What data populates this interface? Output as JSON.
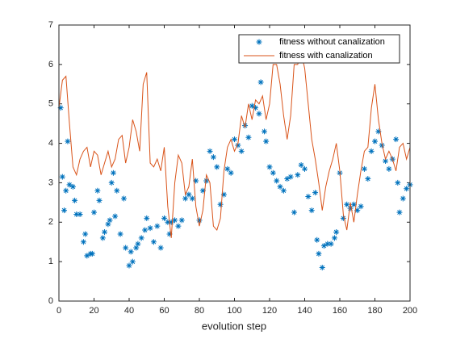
{
  "chart_data": {
    "type": "scatter",
    "xlabel": "evolution step",
    "xlim": [
      0,
      200
    ],
    "xticks": [
      0,
      20,
      40,
      60,
      80,
      100,
      120,
      140,
      160,
      180,
      200
    ],
    "ylim": [
      0,
      7
    ],
    "yticks": [
      0,
      1,
      2,
      3,
      4,
      5,
      6,
      7
    ],
    "legend": "northeast",
    "series": [
      {
        "name": "fitness without canalization",
        "type": "scatter",
        "color": "#0072bd",
        "x": [
          1,
          2,
          3,
          4,
          5,
          6,
          8,
          9,
          10,
          12,
          14,
          15,
          16,
          18,
          19,
          20,
          22,
          23,
          25,
          26,
          28,
          29,
          30,
          31,
          32,
          33,
          35,
          37,
          38,
          40,
          41,
          42,
          44,
          45,
          47,
          49,
          50,
          52,
          54,
          56,
          58,
          60,
          62,
          63,
          64,
          66,
          68,
          70,
          72,
          74,
          76,
          78,
          80,
          82,
          84,
          86,
          88,
          90,
          92,
          94,
          96,
          98,
          100,
          102,
          104,
          106,
          108,
          110,
          112,
          114,
          115,
          117,
          118,
          120,
          122,
          124,
          126,
          128,
          130,
          132,
          134,
          136,
          138,
          140,
          142,
          144,
          146,
          147,
          148,
          150,
          151,
          153,
          155,
          157,
          158,
          160,
          162,
          164,
          166,
          168,
          170,
          172,
          174,
          176,
          178,
          180,
          182,
          184,
          186,
          188,
          190,
          192,
          193,
          194,
          196,
          198,
          200
        ],
        "values": [
          4.9,
          3.15,
          2.3,
          2.8,
          4.05,
          2.95,
          2.9,
          2.55,
          2.2,
          2.2,
          1.5,
          1.7,
          1.15,
          1.2,
          1.2,
          2.25,
          2.8,
          2.55,
          1.6,
          1.75,
          1.95,
          2.05,
          3.0,
          3.25,
          2.15,
          2.8,
          1.7,
          2.6,
          1.35,
          0.9,
          1.25,
          1.0,
          1.35,
          1.45,
          1.6,
          1.8,
          2.1,
          1.85,
          1.5,
          1.9,
          1.35,
          2.1,
          2.0,
          1.7,
          2.0,
          2.05,
          1.9,
          2.05,
          2.6,
          2.7,
          2.6,
          3.05,
          2.05,
          2.8,
          3.05,
          3.8,
          3.65,
          3.4,
          2.45,
          2.7,
          3.35,
          3.25,
          4.1,
          3.95,
          3.8,
          4.45,
          4.15,
          4.95,
          4.9,
          4.75,
          5.55,
          4.3,
          4.05,
          3.4,
          3.25,
          3.05,
          2.9,
          2.8,
          3.1,
          3.15,
          2.25,
          3.2,
          3.45,
          3.35,
          2.65,
          2.3,
          2.75,
          1.55,
          1.2,
          0.85,
          1.4,
          1.45,
          1.45,
          1.6,
          1.75,
          3.25,
          2.1,
          2.45,
          2.35,
          2.45,
          2.3,
          2.4,
          3.35,
          3.1,
          3.8,
          4.05,
          4.3,
          3.95,
          3.55,
          3.35,
          3.6,
          4.1,
          3.0,
          2.25,
          2.6,
          2.85,
          2.95
        ]
      },
      {
        "name": "fitness with canalization",
        "type": "line",
        "color": "#d95319",
        "x": [
          0,
          2,
          4,
          6,
          8,
          10,
          12,
          14,
          16,
          18,
          20,
          22,
          24,
          26,
          28,
          30,
          32,
          34,
          36,
          38,
          40,
          42,
          44,
          46,
          48,
          50,
          52,
          54,
          56,
          58,
          60,
          62,
          64,
          66,
          68,
          70,
          72,
          74,
          76,
          78,
          80,
          82,
          84,
          86,
          88,
          90,
          92,
          94,
          96,
          98,
          100,
          102,
          104,
          106,
          108,
          110,
          112,
          114,
          116,
          118,
          120,
          122,
          124,
          126,
          128,
          130,
          132,
          134,
          136,
          138,
          140,
          142,
          144,
          146,
          148,
          150,
          152,
          154,
          156,
          158,
          160,
          162,
          164,
          166,
          168,
          170,
          172,
          174,
          176,
          178,
          180,
          182,
          184,
          186,
          188,
          190,
          192,
          194,
          196,
          198,
          200
        ],
        "values": [
          4.9,
          5.6,
          5.7,
          4.5,
          3.4,
          3.2,
          3.6,
          3.8,
          3.9,
          3.4,
          3.8,
          3.7,
          3.2,
          3.5,
          3.8,
          3.4,
          3.6,
          4.1,
          4.2,
          3.5,
          3.9,
          4.6,
          4.3,
          3.8,
          5.5,
          5.8,
          3.5,
          3.4,
          3.6,
          3.3,
          3.9,
          2.4,
          1.6,
          3.0,
          3.7,
          3.5,
          2.7,
          2.9,
          3.6,
          2.4,
          1.9,
          2.3,
          3.2,
          3.0,
          1.9,
          1.8,
          2.1,
          3.3,
          3.9,
          4.1,
          3.8,
          4.0,
          4.7,
          4.4,
          5.0,
          4.6,
          5.1,
          5.0,
          5.2,
          4.6,
          5.0,
          6.0,
          6.0,
          5.5,
          4.7,
          4.1,
          4.7,
          6.0,
          6.0,
          6.3,
          5.9,
          5.0,
          4.1,
          3.6,
          3.0,
          2.3,
          2.9,
          3.3,
          3.6,
          4.0,
          3.3,
          2.2,
          1.8,
          2.5,
          2.0,
          2.7,
          3.3,
          3.8,
          3.9,
          4.9,
          5.5,
          4.6,
          4.0,
          3.6,
          3.8,
          3.6,
          3.3,
          3.9,
          4.0,
          3.6,
          3.9
        ]
      }
    ]
  }
}
